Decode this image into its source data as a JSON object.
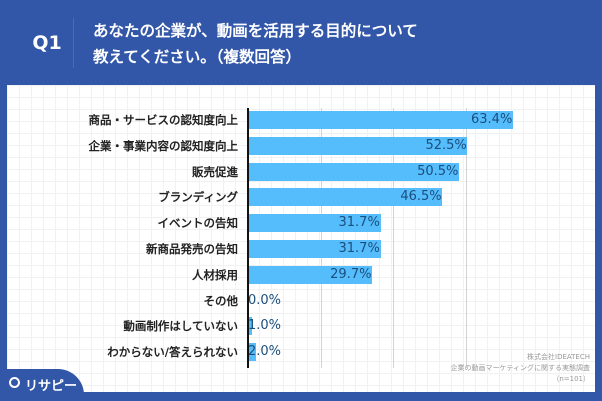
{
  "header": {
    "question_no": "Q1",
    "title_line1": "あなたの企業が、動画を活用する目的について",
    "title_line2": "教えてください。（複数回答）"
  },
  "chart_data": {
    "type": "bar",
    "orientation": "horizontal",
    "categories": [
      "商品・サービスの認知度向上",
      "企業・事業内容の認知度向上",
      "販売促進",
      "ブランディング",
      "イベントの告知",
      "新商品発売の告知",
      "人材採用",
      "その他",
      "動画制作はしていない",
      "わからない/答えられない"
    ],
    "values": [
      63.4,
      52.5,
      50.5,
      46.5,
      31.7,
      31.7,
      29.7,
      0.0,
      1.0,
      2.0
    ],
    "value_labels": [
      "63.4%",
      "52.5%",
      "50.5%",
      "46.5%",
      "31.7%",
      "31.7%",
      "29.7%",
      "0.0%",
      "1.0%",
      "2.0%"
    ],
    "bar_color": "#55bdfc",
    "grid": true
  },
  "source": {
    "company": "株式会社IDEATECH",
    "survey": "企業の動画マーケティングに関する実態調査",
    "n": "（n=101）"
  },
  "logo": {
    "text": "リサピー",
    "icon": "pin-icon"
  }
}
